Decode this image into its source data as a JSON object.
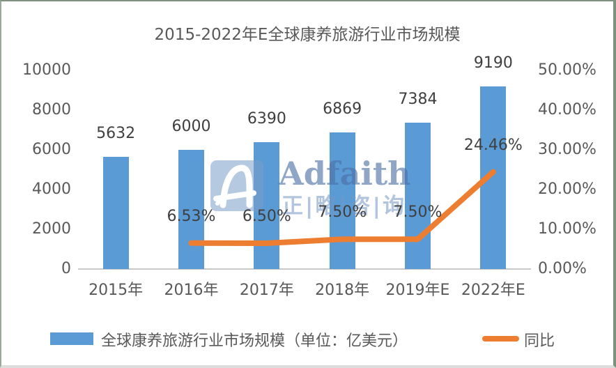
{
  "watermark": {
    "icon_letter": "A",
    "brand": "Adfaith",
    "brand_cn": "正|略|咨|询"
  },
  "chart_data": {
    "type": "bar",
    "subtype": "bar-line-combo",
    "title": "2015-2022年E全球康养旅游行业市场规模",
    "categories": [
      "2015年",
      "2016年",
      "2017年",
      "2018年",
      "2019年E",
      "2022年E"
    ],
    "series": [
      {
        "name": "全球康养旅游行业市场规模（单位：亿美元）",
        "type": "bar",
        "axis": "left",
        "color": "#5B9BD5",
        "values": [
          5632,
          6000,
          6390,
          6869,
          7384,
          9190
        ],
        "labels": [
          "5632",
          "6000",
          "6390",
          "6869",
          "7384",
          "9190"
        ]
      },
      {
        "name": "同比",
        "type": "line",
        "axis": "right",
        "color": "#ED7D31",
        "values": [
          null,
          6.53,
          6.5,
          7.5,
          7.5,
          24.46
        ],
        "labels": [
          "",
          "6.53%",
          "6.50%",
          "7.50%",
          "7.50%",
          "24.46%"
        ]
      }
    ],
    "left_axis": {
      "min": 0,
      "max": 10000,
      "ticks": [
        "0",
        "2000",
        "4000",
        "6000",
        "8000",
        "10000"
      ]
    },
    "right_axis": {
      "min": 0,
      "max": 50,
      "ticks": [
        "0.00%",
        "10.00%",
        "20.00%",
        "30.00%",
        "40.00%",
        "50.00%"
      ]
    },
    "grid": false,
    "legend_position": "bottom"
  }
}
